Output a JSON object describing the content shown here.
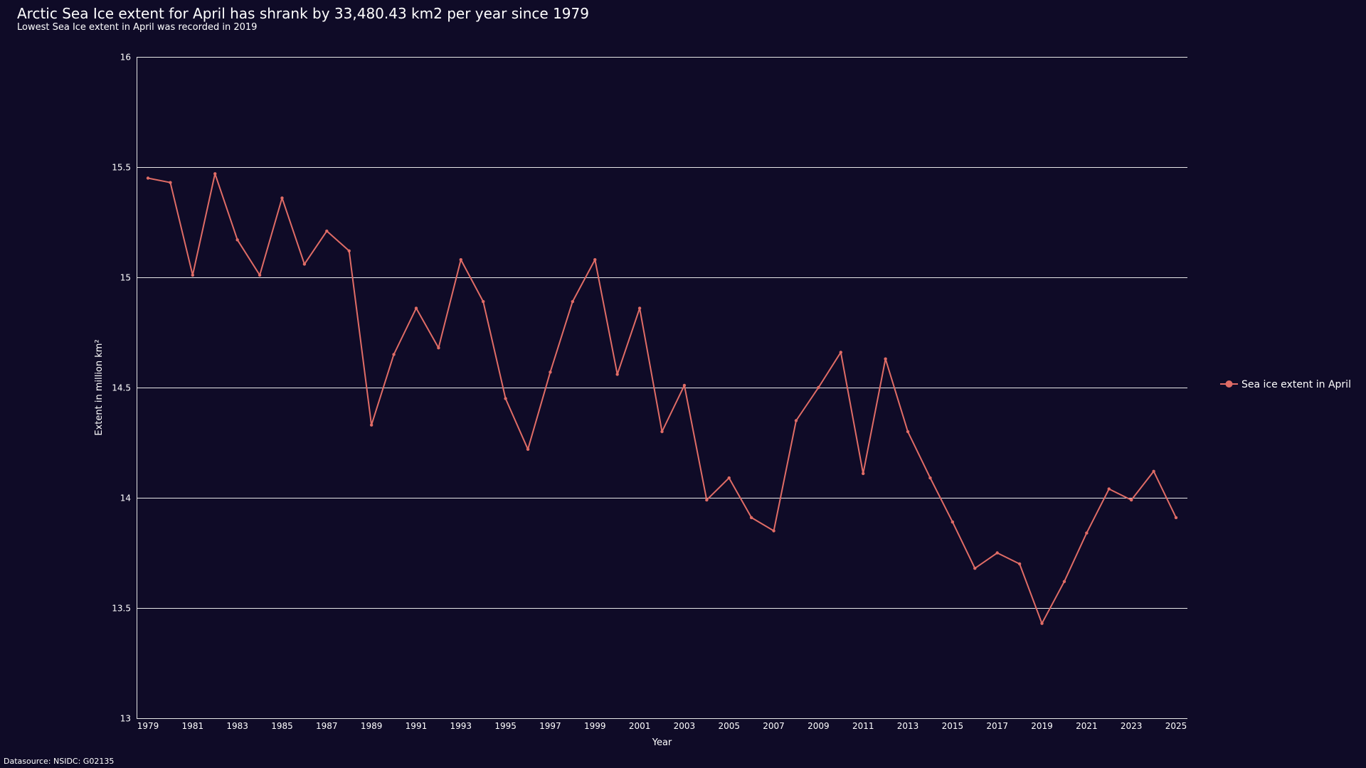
{
  "header": {
    "title": "Arctic Sea Ice extent for April has shrank by 33,480.43 km2 per year since 1979",
    "subtitle": "Lowest Sea Ice extent in April was recorded in 2019"
  },
  "footer": {
    "datasource": "Datasource: NSIDC: G02135"
  },
  "colors": {
    "background": "#0f0b27",
    "series": "#e06c66",
    "grid": "#e8e8e8",
    "text": "#ffffff"
  },
  "chart_data": {
    "type": "line",
    "title": "Arctic Sea Ice extent for April has shrank by 33,480.43 km2 per year since 1979",
    "subtitle": "Lowest Sea Ice extent in April was recorded in 2019",
    "xlabel": "Year",
    "ylabel": "Extent in million km²",
    "xlim": [
      1979,
      2025
    ],
    "ylim": [
      13,
      16
    ],
    "yticks": [
      13,
      13.5,
      14,
      14.5,
      15,
      15.5,
      16
    ],
    "ytick_labels": [
      "13",
      "13.5",
      "14",
      "14.5",
      "15",
      "15.5",
      "16"
    ],
    "xtick_labels": [
      "1979",
      "1981",
      "1983",
      "1985",
      "1987",
      "1989",
      "1991",
      "1993",
      "1995",
      "1997",
      "1999",
      "2001",
      "2003",
      "2005",
      "2007",
      "2009",
      "2011",
      "2013",
      "2015",
      "2017",
      "2019",
      "2021",
      "2023",
      "2025"
    ],
    "grid": true,
    "legend_position": "right",
    "x": [
      1979,
      1980,
      1981,
      1982,
      1983,
      1984,
      1985,
      1986,
      1987,
      1988,
      1989,
      1990,
      1991,
      1992,
      1993,
      1994,
      1995,
      1996,
      1997,
      1998,
      1999,
      2000,
      2001,
      2002,
      2003,
      2004,
      2005,
      2006,
      2007,
      2008,
      2009,
      2010,
      2011,
      2012,
      2013,
      2014,
      2015,
      2016,
      2017,
      2018,
      2019,
      2020,
      2021,
      2022,
      2023,
      2024,
      2025
    ],
    "series": [
      {
        "name": "Sea ice extent in April",
        "values": [
          15.45,
          15.43,
          15.01,
          15.47,
          15.17,
          15.01,
          15.36,
          15.06,
          15.21,
          15.12,
          14.33,
          14.65,
          14.86,
          14.68,
          15.08,
          14.89,
          14.45,
          14.22,
          14.57,
          14.89,
          15.08,
          14.56,
          14.86,
          14.3,
          14.51,
          13.99,
          14.09,
          13.91,
          13.85,
          14.35,
          14.5,
          14.66,
          14.11,
          14.63,
          14.3,
          14.09,
          13.89,
          13.68,
          13.75,
          13.7,
          13.43,
          13.62,
          13.84,
          14.04,
          13.99,
          14.12,
          13.91
        ]
      }
    ]
  }
}
